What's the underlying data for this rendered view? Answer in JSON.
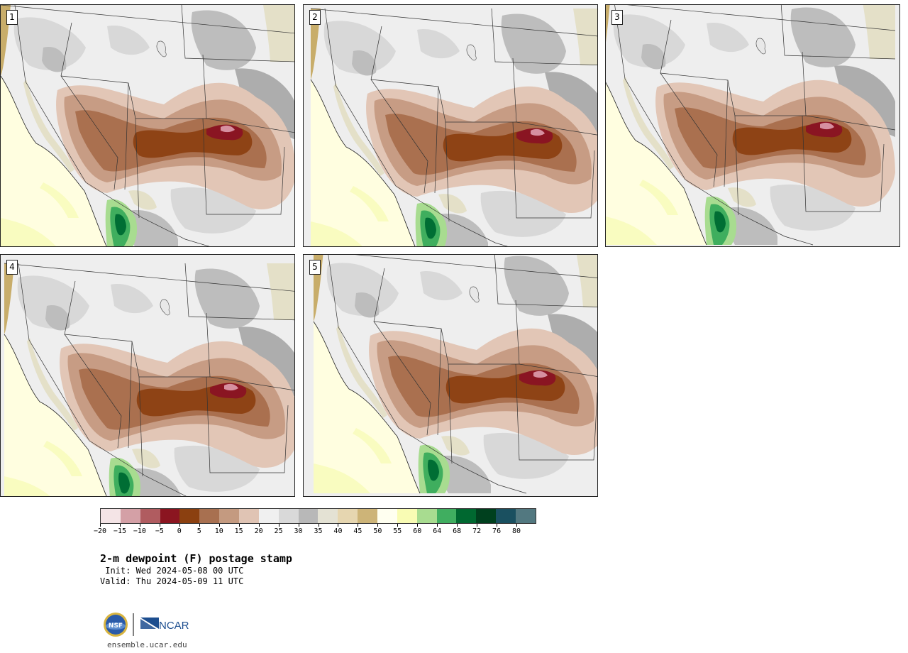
{
  "panels": [
    {
      "label": "1"
    },
    {
      "label": "2"
    },
    {
      "label": "3"
    },
    {
      "label": "4"
    },
    {
      "label": "5"
    }
  ],
  "colorbar": {
    "colors": [
      "#f4e4e6",
      "#d4a0a6",
      "#b05c60",
      "#8b1520",
      "#8b4010",
      "#a87050",
      "#c49a80",
      "#e0c4b4",
      "#f0f0f0",
      "#d9d9d9",
      "#b8b8b8",
      "#e4e2d4",
      "#e6d6b0",
      "#cdb478",
      "#fffff0",
      "#f9fcb4",
      "#a8dc90",
      "#40ae60",
      "#006830",
      "#00401e",
      "#1a5060",
      "#527880"
    ],
    "tick_labels": [
      "−20",
      "−15",
      "−10",
      "−5",
      "0",
      "5",
      "10",
      "15",
      "20",
      "25",
      "30",
      "35",
      "40",
      "45",
      "50",
      "55",
      "60",
      "64",
      "68",
      "72",
      "76",
      "80"
    ]
  },
  "title": "2-m dewpoint (F) postage stamp",
  "init_line": " Init: Wed 2024-05-08 00 UTC",
  "valid_line": "Valid: Thu 2024-05-09 11 UTC",
  "logo": {
    "nsf_text": "NSF",
    "ncar_text": "NCAR"
  },
  "website": "ensemble.ucar.edu"
}
